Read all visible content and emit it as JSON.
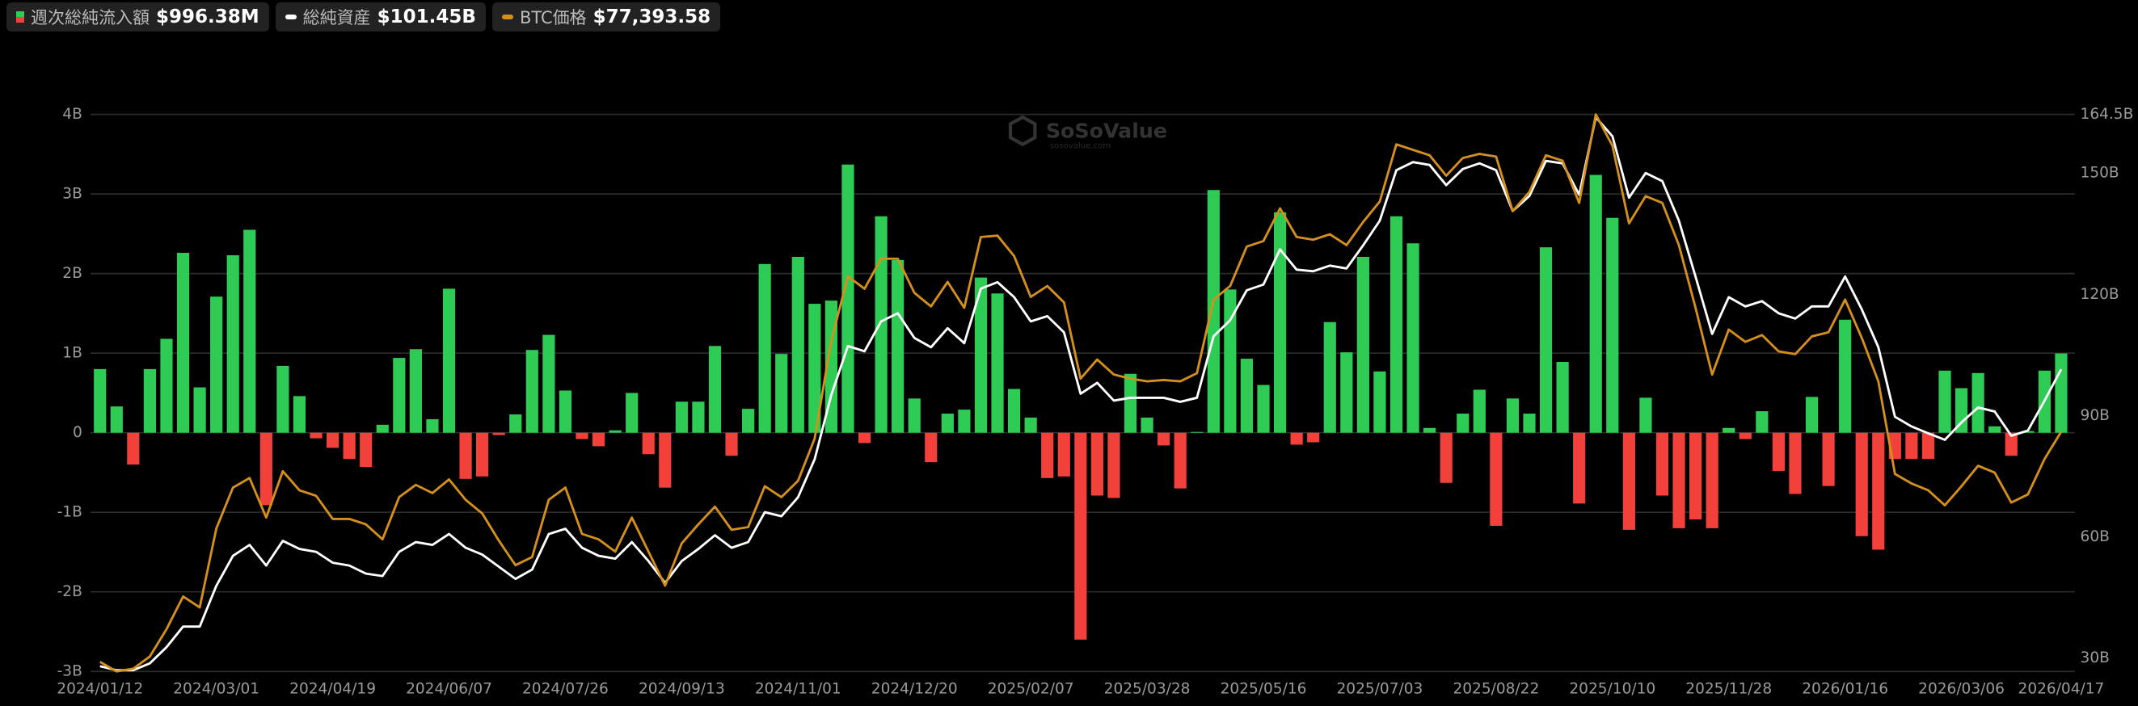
{
  "chart_data": {
    "type": "combo",
    "watermark": "SoSoValue",
    "watermark_sub": "sosovalue.com",
    "categories": [
      "2024/01/12",
      null,
      null,
      null,
      null,
      null,
      null,
      "2024/03/01",
      null,
      null,
      null,
      null,
      null,
      null,
      "2024/04/19",
      null,
      null,
      null,
      null,
      null,
      null,
      "2024/06/07",
      null,
      null,
      null,
      null,
      null,
      null,
      "2024/07/26",
      null,
      null,
      null,
      null,
      null,
      null,
      "2024/09/13",
      null,
      null,
      null,
      null,
      null,
      null,
      "2024/11/01",
      null,
      null,
      null,
      null,
      null,
      null,
      "2024/12/20",
      null,
      null,
      null,
      null,
      null,
      null,
      "2025/02/07",
      null,
      null,
      null,
      null,
      null,
      null,
      "2025/03/28",
      null,
      null,
      null,
      null,
      null,
      null,
      "2025/05/16",
      null,
      null,
      null,
      null,
      null,
      null,
      "2025/07/03",
      null,
      null,
      null,
      null,
      null,
      null,
      "2025/08/22",
      null,
      null,
      null,
      null,
      null,
      null,
      "2025/10/10",
      null,
      null,
      null,
      null,
      null,
      null,
      "2025/11/28",
      null,
      null,
      null,
      null,
      null,
      null,
      "2026/01/16",
      null,
      null,
      null,
      null,
      null,
      null,
      "2026/03/06",
      null,
      null,
      null,
      null,
      null,
      "2026/04/17"
    ],
    "series": [
      {
        "name": "週次総純流入額",
        "latest_label": "$996.38M",
        "type": "bar",
        "axis": "y",
        "color": "#2ecc55",
        "negative_color": "#f2413a",
        "values": [
          0.8,
          0.33,
          -0.4,
          0.8,
          1.18,
          2.26,
          0.57,
          1.71,
          2.23,
          2.55,
          -0.91,
          0.84,
          0.46,
          -0.07,
          -0.19,
          -0.33,
          -0.43,
          0.1,
          0.94,
          1.05,
          0.17,
          1.81,
          -0.58,
          -0.55,
          -0.03,
          0.23,
          1.04,
          1.23,
          0.53,
          -0.08,
          -0.17,
          0.03,
          0.5,
          -0.27,
          -0.69,
          0.39,
          0.39,
          1.09,
          -0.29,
          0.3,
          2.12,
          0.99,
          2.21,
          1.62,
          1.66,
          3.37,
          -0.13,
          2.72,
          2.17,
          0.43,
          -0.37,
          0.24,
          0.29,
          1.95,
          1.75,
          0.55,
          0.19,
          -0.57,
          -0.55,
          -2.6,
          -0.79,
          -0.82,
          0.74,
          0.19,
          -0.16,
          -0.7,
          0.01,
          3.05,
          1.8,
          0.93,
          0.6,
          2.77,
          -0.15,
          -0.12,
          1.39,
          1.01,
          2.21,
          0.77,
          2.72,
          2.38,
          0.06,
          -0.63,
          0.24,
          0.54,
          -1.17,
          0.43,
          0.24,
          2.33,
          0.89,
          -0.89,
          3.24,
          2.7,
          -1.22,
          0.44,
          -0.79,
          -1.2,
          -1.09,
          -1.2,
          0.06,
          -0.08,
          0.27,
          -0.48,
          -0.77,
          0.45,
          -0.67,
          1.42,
          -1.3,
          -1.47,
          -0.33,
          -0.33,
          -0.33,
          0.78,
          0.56,
          0.75,
          0.08,
          -0.29,
          0.02,
          0.78,
          0.99638
        ]
      },
      {
        "name": "総純資産",
        "latest_label": "$101.45B",
        "type": "line",
        "axis": "y2",
        "color": "#ffffff",
        "values": [
          28.0,
          27.0,
          27.0,
          28.7,
          32.7,
          37.8,
          37.8,
          47.9,
          55.3,
          58.0,
          52.9,
          59.0,
          57.0,
          56.3,
          53.6,
          52.9,
          50.9,
          50.3,
          56.3,
          58.7,
          58.0,
          60.7,
          57.3,
          55.6,
          52.6,
          49.6,
          51.9,
          60.7,
          62.0,
          57.3,
          55.3,
          54.6,
          58.7,
          54.0,
          48.6,
          54.0,
          57.0,
          60.4,
          57.3,
          58.7,
          66.1,
          65.1,
          69.8,
          79.2,
          95.1,
          107.2,
          105.9,
          113.3,
          115.3,
          109.2,
          106.9,
          111.6,
          107.9,
          121.4,
          123.0,
          119.3,
          113.3,
          114.6,
          110.6,
          95.4,
          98.1,
          93.7,
          94.4,
          94.4,
          94.4,
          93.4,
          94.4,
          109.6,
          113.6,
          121.0,
          122.4,
          131.1,
          126.1,
          125.7,
          127.1,
          126.4,
          132.1,
          138.2,
          150.7,
          152.7,
          152.0,
          147.0,
          151.0,
          152.4,
          150.7,
          140.6,
          144.3,
          153.0,
          152.4,
          144.6,
          163.8,
          159.1,
          143.9,
          150.0,
          148.0,
          138.2,
          124.4,
          110.2,
          119.3,
          117.0,
          118.3,
          115.3,
          114.0,
          117.0,
          117.0,
          124.4,
          116.3,
          106.9,
          89.7,
          87.3,
          85.6,
          84.0,
          88.3,
          92.0,
          91.0,
          85.0,
          86.3,
          93.7,
          101.45
        ]
      },
      {
        "name": "BTC価格",
        "latest_label": "$77,393.58",
        "type": "line",
        "axis": "y3",
        "color": "#d4901a",
        "values": [
          43600,
          42200,
          42600,
          44400,
          48400,
          53200,
          51600,
          63200,
          69200,
          70600,
          64800,
          71600,
          68800,
          68000,
          64600,
          64600,
          63800,
          61600,
          67800,
          69600,
          68400,
          70400,
          67400,
          65400,
          61400,
          57800,
          59000,
          67400,
          69200,
          62400,
          61600,
          59800,
          64800,
          59800,
          54800,
          61000,
          63800,
          66400,
          63000,
          63400,
          69400,
          67800,
          70200,
          76400,
          90800,
          100200,
          98400,
          102800,
          102800,
          97800,
          95800,
          99400,
          95600,
          106000,
          106200,
          103200,
          97200,
          98800,
          96400,
          85200,
          88000,
          85800,
          85200,
          84800,
          85000,
          84800,
          86000,
          96800,
          98800,
          104600,
          105400,
          110200,
          106000,
          105600,
          106400,
          104800,
          108200,
          111200,
          119600,
          118800,
          118000,
          115000,
          117600,
          118200,
          117800,
          109800,
          112600,
          118000,
          117200,
          111000,
          124000,
          119400,
          108000,
          112000,
          111000,
          104800,
          95600,
          85800,
          92400,
          90600,
          91600,
          89200,
          88800,
          91400,
          92000,
          96800,
          91200,
          84800,
          71200,
          69800,
          68800,
          66600,
          69400,
          72400,
          71400,
          67000,
          68200,
          73400,
          77393.58
        ]
      }
    ],
    "ylim": [
      -3,
      4
    ],
    "yticks": [
      {
        "value": 4,
        "label": "4B"
      },
      {
        "value": 3,
        "label": "3B"
      },
      {
        "value": 2,
        "label": "2B"
      },
      {
        "value": 1,
        "label": "1B"
      },
      0,
      {
        "value": -1,
        "label": "-1B"
      },
      {
        "value": -2,
        "label": "-2B"
      },
      {
        "value": -3,
        "label": "-3B"
      }
    ],
    "y2lim": [
      26.7,
      164.5
    ],
    "y2ticks": [
      {
        "value": 164.5,
        "label": "164.5B"
      },
      {
        "value": 150,
        "label": "150B"
      },
      {
        "value": 120,
        "label": "120B"
      },
      {
        "value": 90,
        "label": "90B"
      },
      {
        "value": 60,
        "label": "60B"
      },
      {
        "value": 30,
        "label": "30B"
      }
    ],
    "y3lim": [
      42200,
      124000
    ],
    "grid": true
  }
}
